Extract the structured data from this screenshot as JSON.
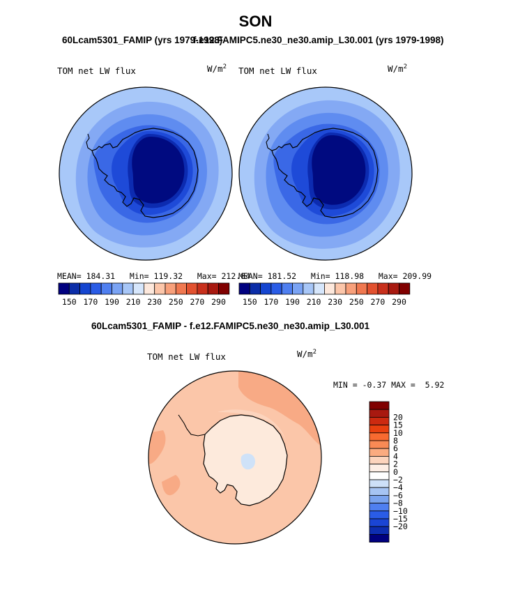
{
  "title": "SON",
  "top_left": {
    "case_title": "60Lcam5301_FAMIP (yrs 1979-1998)",
    "variable": "TOM net LW flux",
    "units": "W/m",
    "units_exp": "2",
    "mean_label": "MEAN=",
    "mean": "184.31",
    "min_label": "Min=",
    "min": "119.32",
    "max_label": "Max=",
    "max": "212.84"
  },
  "top_right": {
    "case_title": "f.e12.FAMIPC5.ne30_ne30.amip_L30.001 (yrs 1979-1998)",
    "variable": "TOM net LW flux",
    "units": "W/m",
    "units_exp": "2",
    "mean_label": "MEAN=",
    "mean": "181.52",
    "min_label": "Min=",
    "min": "118.98",
    "max_label": "Max=",
    "max": "209.99"
  },
  "abs_colorbar": {
    "colors": [
      "#00007f",
      "#0b2da8",
      "#1545d0",
      "#2a5ce6",
      "#4f7ff0",
      "#7aa3f4",
      "#a7c6f7",
      "#d6e6fb",
      "#fde8dc",
      "#fcc6aa",
      "#f8a07b",
      "#f07850",
      "#e2512f",
      "#c8301c",
      "#a81910",
      "#800000"
    ],
    "tick_labels": [
      "150",
      "170",
      "190",
      "210",
      "230",
      "250",
      "270",
      "290"
    ]
  },
  "diff": {
    "case_title": "60Lcam5301_FAMIP - f.e12.FAMIPC5.ne30_ne30.amip_L30.001",
    "variable": "TOM net LW flux",
    "units": "W/m",
    "units_exp": "2",
    "min_label": "MIN =",
    "min": "-0.37",
    "max_label": "MAX =",
    "max": "5.92"
  },
  "diff_colorbar": {
    "colors": [
      "#800000",
      "#a81910",
      "#cc2a10",
      "#e8400f",
      "#f86a30",
      "#f98a55",
      "#fbab80",
      "#fcd4bd",
      "#fdeee5",
      "#ffffff",
      "#cde0f8",
      "#a6c4f3",
      "#7aa3ee",
      "#4f7ff0",
      "#2a5ce6",
      "#1a45d4",
      "#0d2db0",
      "#00007f"
    ],
    "tick_labels": [
      "20",
      "15",
      "10",
      "8",
      "6",
      "4",
      "2",
      "0",
      "−2",
      "−4",
      "−6",
      "−8",
      "−10",
      "−15",
      "−20"
    ]
  }
}
